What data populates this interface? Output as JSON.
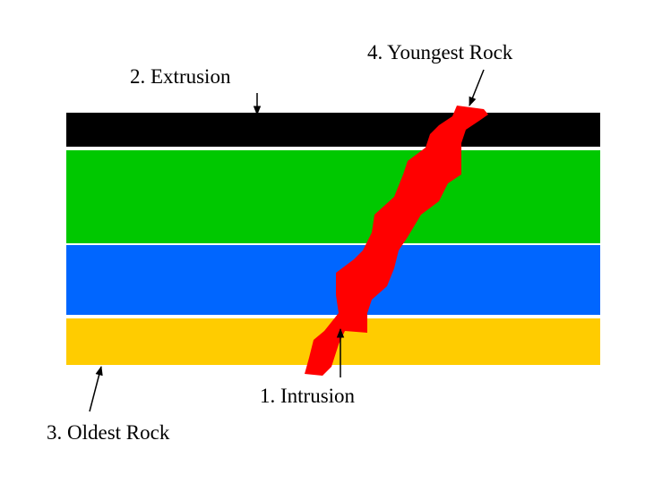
{
  "labels": [
    "2. Extrusion",
    "4. Youngest Rock",
    "1. Intrusion",
    "3. Oldest Rock"
  ]
}
